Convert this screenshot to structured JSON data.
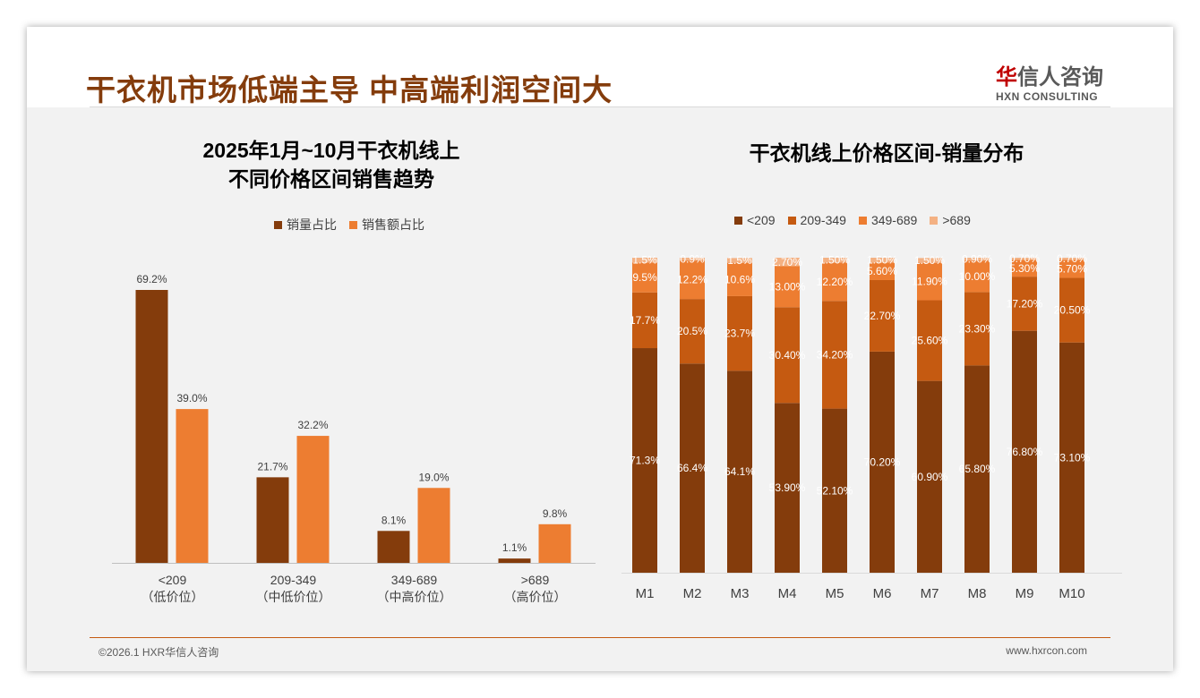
{
  "header": {
    "title": "干衣机市场低端主导 中高端利润空间大",
    "logo_cn_mark": "华",
    "logo_cn": "信人咨询",
    "logo_en": "HXN CONSULTING"
  },
  "footer": {
    "copyright": "©2026.1 HXR华信人咨询",
    "url": "www.hxrcon.com"
  },
  "colors": {
    "dark": "#843c0c",
    "mid": "#c55a11",
    "orange": "#ed7d31",
    "light": "#f4b183"
  },
  "chart_data": [
    {
      "type": "bar",
      "title": "2025年1月~10月干衣机线上\n不同价格区间销售趋势",
      "title_line1": "2025年1月~10月干衣机线上",
      "title_line2": "不同价格区间销售趋势",
      "categories": [
        "<209",
        "209-349",
        "349-689",
        ">689"
      ],
      "subcategories": [
        "（低价位）",
        "（中低价位）",
        "（中高价位）",
        "（高价位）"
      ],
      "series": [
        {
          "name": "销量占比",
          "values": [
            69.2,
            21.7,
            8.1,
            1.1
          ],
          "labels": [
            "69.2%",
            "21.7%",
            "8.1%",
            "1.1%"
          ]
        },
        {
          "name": "销售额占比",
          "values": [
            39.0,
            32.2,
            19.0,
            9.8
          ],
          "labels": [
            "39.0%",
            "32.2%",
            "19.0%",
            "9.8%"
          ]
        }
      ],
      "legend": "top",
      "ylim": [
        0,
        75
      ]
    },
    {
      "type": "bar",
      "stacked": true,
      "title": "干衣机线上价格区间-销量分布",
      "categories": [
        "M1",
        "M2",
        "M3",
        "M4",
        "M5",
        "M6",
        "M7",
        "M8",
        "M9",
        "M10"
      ],
      "series": [
        {
          "name": "<209",
          "values": [
            71.3,
            66.4,
            64.1,
            53.9,
            52.1,
            70.2,
            60.9,
            65.8,
            76.8,
            73.1
          ],
          "labels": [
            "71.3%",
            "66.4%",
            "64.1%",
            "53.90%",
            "52.10%",
            "70.20%",
            "60.90%",
            "65.80%",
            "76.80%",
            "73.10%"
          ]
        },
        {
          "name": "209-349",
          "values": [
            17.7,
            20.5,
            23.7,
            30.4,
            34.2,
            22.7,
            25.6,
            23.3,
            17.2,
            20.5
          ],
          "labels": [
            "17.7%",
            "20.5%",
            "23.7%",
            "30.40%",
            "34.20%",
            "22.70%",
            "25.60%",
            "23.30%",
            "17.20%",
            "20.50%"
          ]
        },
        {
          "name": "349-689",
          "values": [
            9.5,
            12.2,
            10.6,
            13.0,
            12.2,
            5.6,
            11.9,
            10.0,
            5.3,
            5.7
          ],
          "labels": [
            "9.5%",
            "12.2%",
            "10.6%",
            "13.00%",
            "12.20%",
            "5.60%",
            "11.90%",
            "10.00%",
            "5.30%",
            "5.70%"
          ]
        },
        {
          "name": ">689",
          "values": [
            1.5,
            0.9,
            1.5,
            2.7,
            1.5,
            1.5,
            1.5,
            0.9,
            0.7,
            0.7
          ],
          "labels": [
            "1.5%",
            "0.9%",
            "1.5%",
            "2.70%",
            "1.50%",
            "1.50%",
            "1.50%",
            "0.90%",
            "0.70%",
            "0.70%"
          ]
        }
      ],
      "legend": "top",
      "ylim": [
        0,
        100
      ]
    }
  ]
}
